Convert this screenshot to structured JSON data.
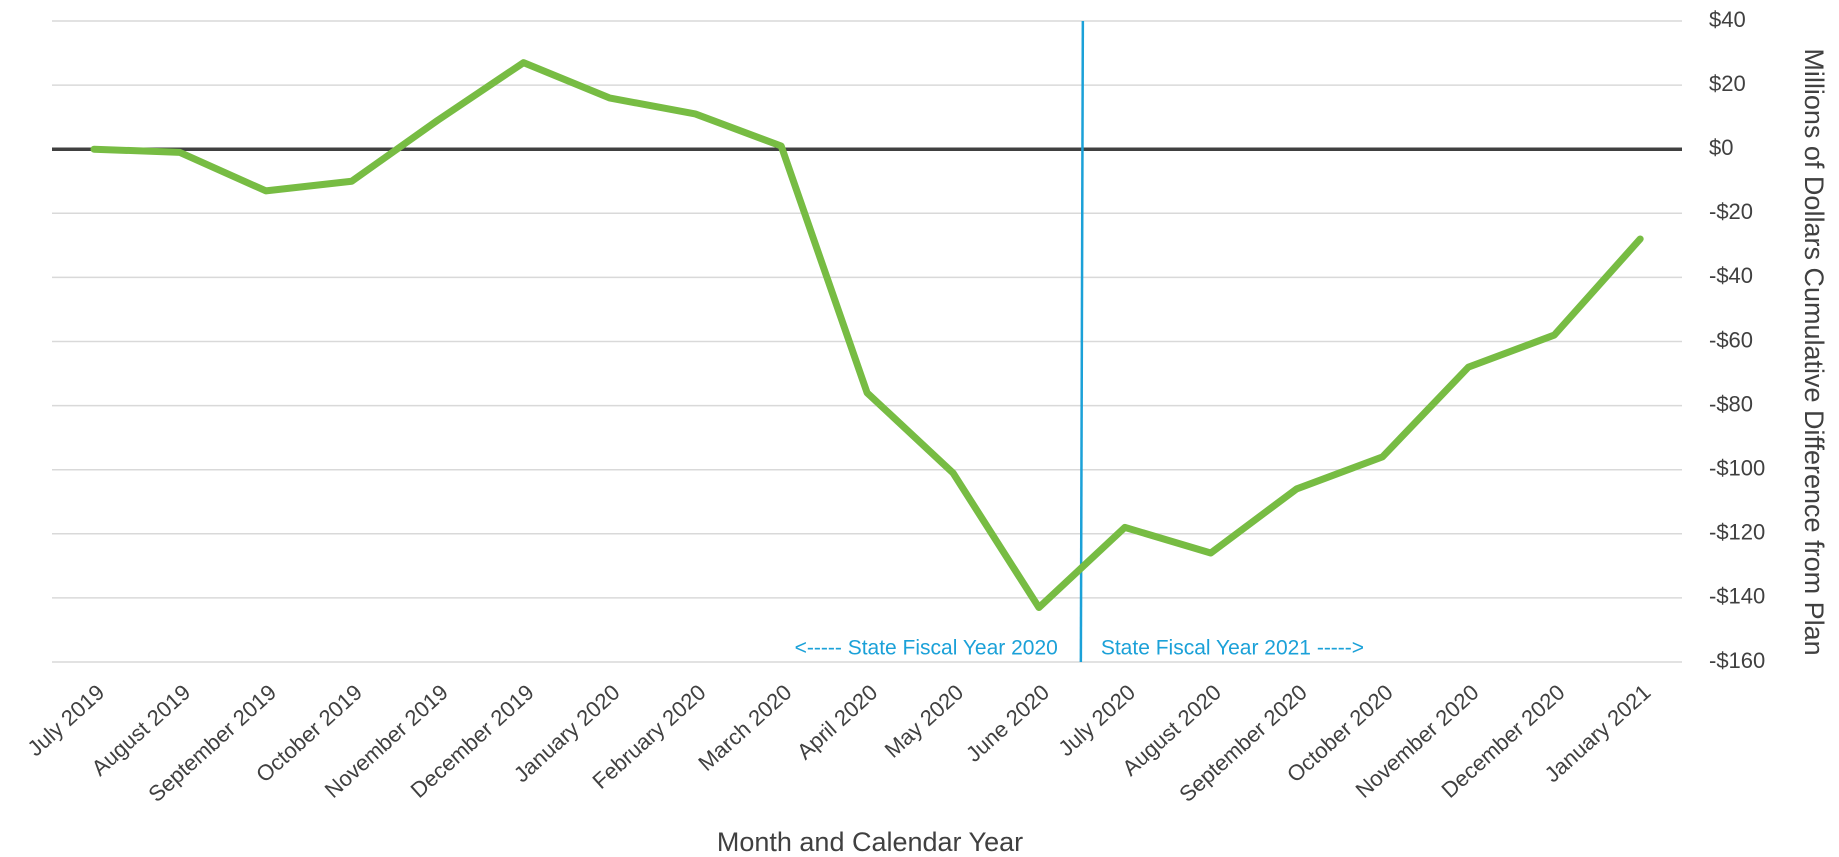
{
  "chart_data": {
    "type": "line",
    "x_label": "Month and Calendar Year",
    "y_label": "Millions of Dollars Cumulative Difference from Plan",
    "categories": [
      "July 2019",
      "August 2019",
      "September 2019",
      "October 2019",
      "November 2019",
      "December 2019",
      "January 2020",
      "February 2020",
      "March 2020",
      "April 2020",
      "May 2020",
      "June 2020",
      "July 2020",
      "August 2020",
      "September 2020",
      "October 2020",
      "November 2020",
      "December 2020",
      "January 2021"
    ],
    "series": [
      {
        "name": "Cumulative Difference",
        "color": "#77bc43",
        "values": [
          0,
          -1,
          -13,
          -10,
          9,
          27,
          16,
          11,
          1,
          -76,
          -101,
          -143,
          -118,
          -126,
          -106,
          -96,
          -68,
          -58,
          -28
        ]
      }
    ],
    "ylim": [
      -160,
      40
    ],
    "yticks": [
      {
        "value": 40,
        "label": "$40"
      },
      {
        "value": 20,
        "label": "$20"
      },
      {
        "value": 0,
        "label": "$0"
      },
      {
        "value": -20,
        "label": "-$20"
      },
      {
        "value": -40,
        "label": "-$40"
      },
      {
        "value": -60,
        "label": "-$60"
      },
      {
        "value": -80,
        "label": "-$80"
      },
      {
        "value": -100,
        "label": "-$100"
      },
      {
        "value": -120,
        "label": "-$120"
      },
      {
        "value": -140,
        "label": "-$140"
      },
      {
        "value": -160,
        "label": "-$160"
      }
    ],
    "grid": true,
    "annotations": [
      "<----- State Fiscal Year 2020",
      "State Fiscal Year 2021 ----->"
    ],
    "annotation_color": "#1ba1d8"
  }
}
